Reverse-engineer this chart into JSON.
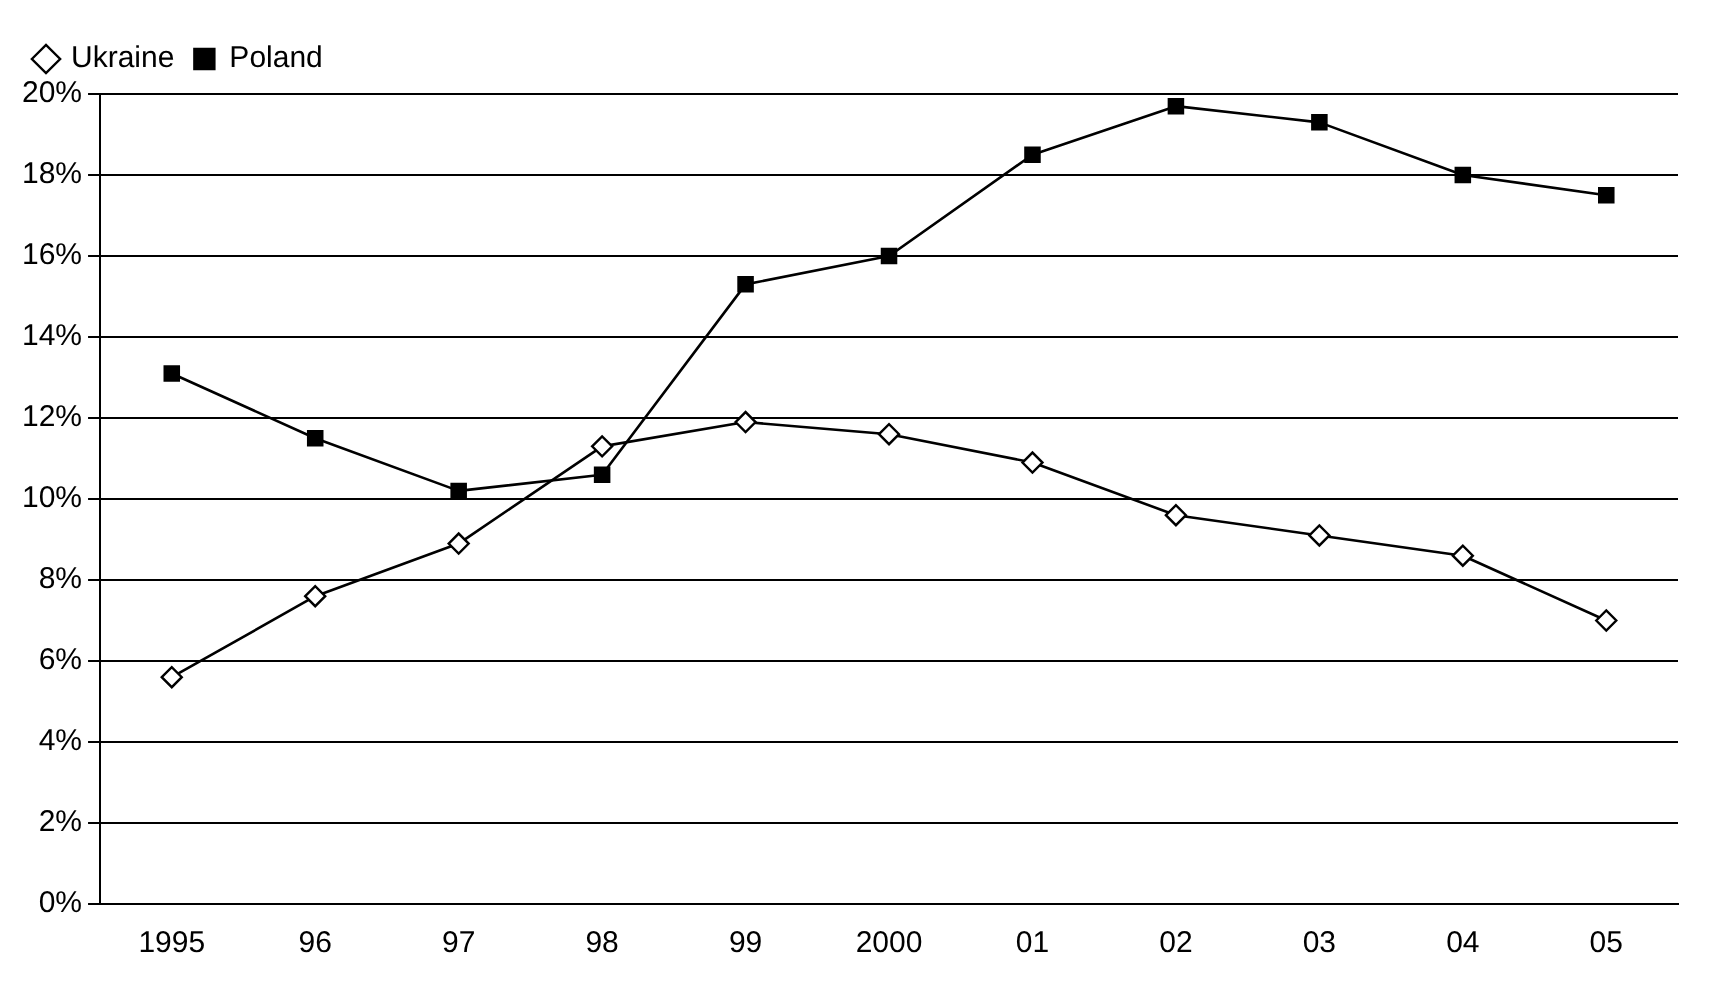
{
  "chart_data": {
    "type": "line",
    "categories": [
      "1995",
      "96",
      "97",
      "98",
      "99",
      "2000",
      "01",
      "02",
      "03",
      "04",
      "05"
    ],
    "series": [
      {
        "name": "Ukraine",
        "color": "#000000",
        "marker": "diamond",
        "values": [
          5.6,
          7.6,
          8.9,
          11.3,
          11.9,
          11.6,
          10.9,
          9.6,
          9.1,
          8.6,
          7.0
        ]
      },
      {
        "name": "Poland",
        "color": "#000000",
        "marker": "square",
        "values": [
          13.1,
          11.5,
          10.2,
          10.6,
          15.3,
          16.0,
          18.5,
          19.7,
          19.3,
          18.0,
          17.5
        ]
      }
    ],
    "ylim": [
      0,
      20
    ],
    "yticks": [
      {
        "value": 0,
        "label": "0%"
      },
      {
        "value": 2,
        "label": "2%"
      },
      {
        "value": 4,
        "label": "4%"
      },
      {
        "value": 6,
        "label": "6%"
      },
      {
        "value": 8,
        "label": "8%"
      },
      {
        "value": 10,
        "label": "10%"
      },
      {
        "value": 12,
        "label": "12%"
      },
      {
        "value": 14,
        "label": "14%"
      },
      {
        "value": 16,
        "label": "16%"
      },
      {
        "value": 18,
        "label": "18%"
      },
      {
        "value": 20,
        "label": "20%"
      }
    ],
    "grid": "y",
    "legend": "top left",
    "line_style": "solid"
  }
}
